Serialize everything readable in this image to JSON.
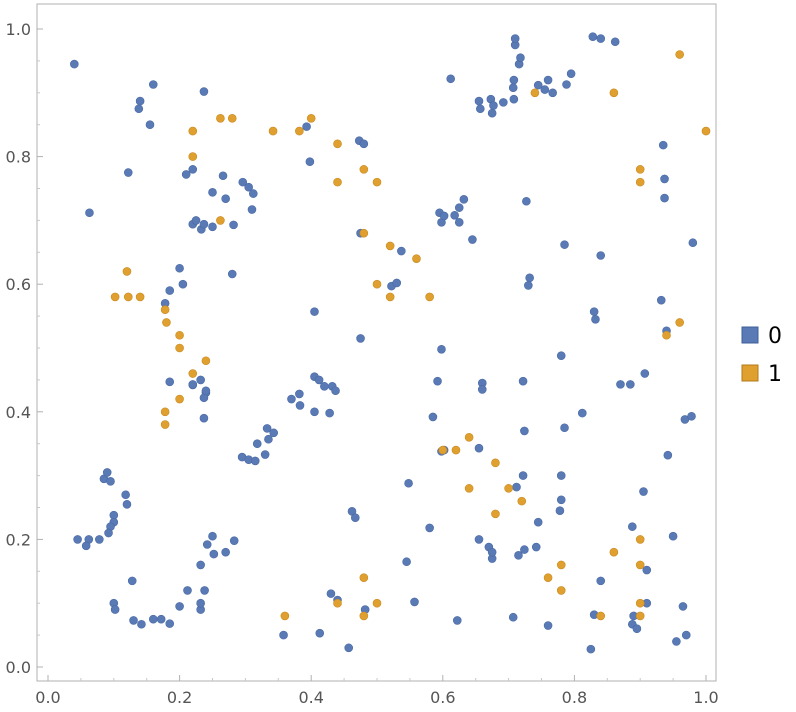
{
  "chart_data": {
    "type": "scatter",
    "title": "",
    "xlabel": "",
    "ylabel": "",
    "xlim": [
      -0.02,
      1.02
    ],
    "ylim": [
      -0.02,
      1.02
    ],
    "xticks": [
      "0.0",
      "0.2",
      "0.4",
      "0.6",
      "0.8",
      "1.0"
    ],
    "yticks": [
      "0.0",
      "0.2",
      "0.4",
      "0.6",
      "0.8",
      "1.0"
    ],
    "grid": false,
    "legend_position": "right",
    "series": [
      {
        "name": "0",
        "color": "#5a7ab5",
        "points": [
          [
            0.04,
            0.945
          ],
          [
            0.063,
            0.712
          ],
          [
            0.122,
            0.775
          ],
          [
            0.138,
            0.875
          ],
          [
            0.14,
            0.887
          ],
          [
            0.155,
            0.85
          ],
          [
            0.16,
            0.913
          ],
          [
            0.237,
            0.902
          ],
          [
            0.21,
            0.772
          ],
          [
            0.22,
            0.78
          ],
          [
            0.25,
            0.744
          ],
          [
            0.266,
            0.77
          ],
          [
            0.27,
            0.734
          ],
          [
            0.296,
            0.76
          ],
          [
            0.305,
            0.752
          ],
          [
            0.312,
            0.742
          ],
          [
            0.31,
            0.717
          ],
          [
            0.22,
            0.694
          ],
          [
            0.225,
            0.7
          ],
          [
            0.233,
            0.686
          ],
          [
            0.237,
            0.694
          ],
          [
            0.25,
            0.69
          ],
          [
            0.282,
            0.693
          ],
          [
            0.28,
            0.616
          ],
          [
            0.2,
            0.625
          ],
          [
            0.205,
            0.6
          ],
          [
            0.185,
            0.59
          ],
          [
            0.178,
            0.57
          ],
          [
            0.185,
            0.447
          ],
          [
            0.22,
            0.442
          ],
          [
            0.232,
            0.45
          ],
          [
            0.24,
            0.43
          ],
          [
            0.237,
            0.422
          ],
          [
            0.333,
            0.374
          ],
          [
            0.343,
            0.367
          ],
          [
            0.335,
            0.357
          ],
          [
            0.318,
            0.35
          ],
          [
            0.33,
            0.333
          ],
          [
            0.295,
            0.329
          ],
          [
            0.305,
            0.325
          ],
          [
            0.315,
            0.323
          ],
          [
            0.37,
            0.42
          ],
          [
            0.382,
            0.428
          ],
          [
            0.383,
            0.41
          ],
          [
            0.393,
            0.847
          ],
          [
            0.398,
            0.792
          ],
          [
            0.405,
            0.557
          ],
          [
            0.405,
            0.455
          ],
          [
            0.412,
            0.45
          ],
          [
            0.42,
            0.44
          ],
          [
            0.432,
            0.44
          ],
          [
            0.437,
            0.433
          ],
          [
            0.405,
            0.4
          ],
          [
            0.428,
            0.398
          ],
          [
            0.473,
            0.825
          ],
          [
            0.48,
            0.82
          ],
          [
            0.475,
            0.68
          ],
          [
            0.475,
            0.515
          ],
          [
            0.522,
            0.597
          ],
          [
            0.53,
            0.602
          ],
          [
            0.537,
            0.652
          ],
          [
            0.462,
            0.244
          ],
          [
            0.467,
            0.234
          ],
          [
            0.43,
            0.115
          ],
          [
            0.44,
            0.105
          ],
          [
            0.457,
            0.03
          ],
          [
            0.413,
            0.053
          ],
          [
            0.358,
            0.05
          ],
          [
            0.482,
            0.09
          ],
          [
            0.545,
            0.165
          ],
          [
            0.548,
            0.288
          ],
          [
            0.557,
            0.102
          ],
          [
            0.58,
            0.218
          ],
          [
            0.585,
            0.392
          ],
          [
            0.592,
            0.448
          ],
          [
            0.595,
            0.712
          ],
          [
            0.598,
            0.697
          ],
          [
            0.602,
            0.707
          ],
          [
            0.598,
            0.338
          ],
          [
            0.602,
            0.34
          ],
          [
            0.598,
            0.498
          ],
          [
            0.612,
            0.922
          ],
          [
            0.618,
            0.708
          ],
          [
            0.625,
            0.72
          ],
          [
            0.625,
            0.697
          ],
          [
            0.632,
            0.733
          ],
          [
            0.622,
            0.073
          ],
          [
            0.655,
            0.887
          ],
          [
            0.657,
            0.875
          ],
          [
            0.66,
            0.445
          ],
          [
            0.66,
            0.435
          ],
          [
            0.655,
            0.343
          ],
          [
            0.655,
            0.2
          ],
          [
            0.67,
            0.188
          ],
          [
            0.675,
            0.17
          ],
          [
            0.673,
            0.89
          ],
          [
            0.677,
            0.88
          ],
          [
            0.675,
            0.868
          ],
          [
            0.692,
            0.885
          ],
          [
            0.708,
            0.89
          ],
          [
            0.707,
            0.908
          ],
          [
            0.708,
            0.92
          ],
          [
            0.71,
            0.975
          ],
          [
            0.71,
            0.985
          ],
          [
            0.716,
            0.945
          ],
          [
            0.718,
            0.955
          ],
          [
            0.712,
            0.282
          ],
          [
            0.707,
            0.078
          ],
          [
            0.715,
            0.175
          ],
          [
            0.722,
            0.448
          ],
          [
            0.724,
            0.37
          ],
          [
            0.722,
            0.3
          ],
          [
            0.724,
            0.184
          ],
          [
            0.727,
            0.73
          ],
          [
            0.73,
            0.598
          ],
          [
            0.732,
            0.61
          ],
          [
            0.745,
            0.912
          ],
          [
            0.742,
            0.188
          ],
          [
            0.745,
            0.227
          ],
          [
            0.755,
            0.905
          ],
          [
            0.76,
            0.92
          ],
          [
            0.767,
            0.9
          ],
          [
            0.76,
            0.065
          ],
          [
            0.78,
            0.262
          ],
          [
            0.778,
            0.245
          ],
          [
            0.78,
            0.3
          ],
          [
            0.785,
            0.662
          ],
          [
            0.78,
            0.488
          ],
          [
            0.785,
            0.375
          ],
          [
            0.795,
            0.93
          ],
          [
            0.788,
            0.913
          ],
          [
            0.812,
            0.398
          ],
          [
            0.828,
            0.988
          ],
          [
            0.832,
            0.545
          ],
          [
            0.83,
            0.557
          ],
          [
            0.84,
            0.645
          ],
          [
            0.84,
            0.985
          ],
          [
            0.83,
            0.082
          ],
          [
            0.825,
            0.028
          ],
          [
            0.84,
            0.135
          ],
          [
            0.862,
            0.98
          ],
          [
            0.87,
            0.443
          ],
          [
            0.885,
            0.443
          ],
          [
            0.888,
            0.22
          ],
          [
            0.89,
            0.08
          ],
          [
            0.888,
            0.067
          ],
          [
            0.895,
            0.06
          ],
          [
            0.905,
            0.275
          ],
          [
            0.907,
            0.46
          ],
          [
            0.91,
            0.152
          ],
          [
            0.91,
            0.1
          ],
          [
            0.932,
            0.575
          ],
          [
            0.935,
            0.818
          ],
          [
            0.937,
            0.765
          ],
          [
            0.937,
            0.735
          ],
          [
            0.94,
            0.527
          ],
          [
            0.942,
            0.332
          ],
          [
            0.95,
            0.205
          ],
          [
            0.955,
            0.04
          ],
          [
            0.965,
            0.095
          ],
          [
            0.968,
            0.388
          ],
          [
            0.978,
            0.393
          ],
          [
            0.98,
            0.665
          ],
          [
            0.97,
            0.05
          ],
          [
            0.085,
            0.295
          ],
          [
            0.09,
            0.305
          ],
          [
            0.095,
            0.291
          ],
          [
            0.118,
            0.27
          ],
          [
            0.12,
            0.255
          ],
          [
            0.1,
            0.238
          ],
          [
            0.1,
            0.227
          ],
          [
            0.095,
            0.22
          ],
          [
            0.092,
            0.21
          ],
          [
            0.078,
            0.2
          ],
          [
            0.062,
            0.2
          ],
          [
            0.058,
            0.19
          ],
          [
            0.045,
            0.2
          ],
          [
            0.1,
            0.1
          ],
          [
            0.102,
            0.09
          ],
          [
            0.128,
            0.135
          ],
          [
            0.13,
            0.073
          ],
          [
            0.142,
            0.067
          ],
          [
            0.16,
            0.075
          ],
          [
            0.172,
            0.075
          ],
          [
            0.185,
            0.068
          ],
          [
            0.2,
            0.095
          ],
          [
            0.212,
            0.12
          ],
          [
            0.232,
            0.09
          ],
          [
            0.232,
            0.1
          ],
          [
            0.238,
            0.12
          ],
          [
            0.232,
            0.16
          ],
          [
            0.242,
            0.192
          ],
          [
            0.25,
            0.205
          ],
          [
            0.252,
            0.177
          ],
          [
            0.27,
            0.18
          ],
          [
            0.283,
            0.198
          ],
          [
            0.237,
            0.39
          ],
          [
            0.24,
            0.433
          ],
          [
            0.22,
            0.443
          ],
          [
            0.645,
            0.67
          ],
          [
            0.675,
            0.18
          ]
        ]
      },
      {
        "name": "1",
        "color": "#e0a030",
        "points": [
          [
            0.102,
            0.58
          ],
          [
            0.12,
            0.62
          ],
          [
            0.122,
            0.58
          ],
          [
            0.14,
            0.58
          ],
          [
            0.178,
            0.56
          ],
          [
            0.18,
            0.54
          ],
          [
            0.2,
            0.52
          ],
          [
            0.2,
            0.5
          ],
          [
            0.22,
            0.46
          ],
          [
            0.24,
            0.48
          ],
          [
            0.2,
            0.42
          ],
          [
            0.178,
            0.4
          ],
          [
            0.178,
            0.38
          ],
          [
            0.22,
            0.84
          ],
          [
            0.22,
            0.8
          ],
          [
            0.262,
            0.86
          ],
          [
            0.28,
            0.86
          ],
          [
            0.262,
            0.7
          ],
          [
            0.342,
            0.84
          ],
          [
            0.382,
            0.84
          ],
          [
            0.4,
            0.86
          ],
          [
            0.44,
            0.82
          ],
          [
            0.44,
            0.76
          ],
          [
            0.48,
            0.78
          ],
          [
            0.5,
            0.76
          ],
          [
            0.48,
            0.68
          ],
          [
            0.5,
            0.6
          ],
          [
            0.52,
            0.66
          ],
          [
            0.52,
            0.58
          ],
          [
            0.56,
            0.64
          ],
          [
            0.58,
            0.58
          ],
          [
            0.6,
            0.34
          ],
          [
            0.62,
            0.34
          ],
          [
            0.64,
            0.36
          ],
          [
            0.64,
            0.28
          ],
          [
            0.68,
            0.32
          ],
          [
            0.68,
            0.24
          ],
          [
            0.7,
            0.28
          ],
          [
            0.72,
            0.26
          ],
          [
            0.74,
            0.9
          ],
          [
            0.76,
            0.14
          ],
          [
            0.78,
            0.16
          ],
          [
            0.78,
            0.12
          ],
          [
            0.86,
            0.9
          ],
          [
            0.86,
            0.18
          ],
          [
            0.84,
            0.08
          ],
          [
            0.9,
            0.78
          ],
          [
            0.9,
            0.76
          ],
          [
            0.9,
            0.2
          ],
          [
            0.9,
            0.16
          ],
          [
            0.9,
            0.1
          ],
          [
            0.9,
            0.08
          ],
          [
            0.94,
            0.52
          ],
          [
            0.96,
            0.54
          ],
          [
            0.96,
            0.96
          ],
          [
            1.0,
            0.84
          ],
          [
            0.36,
            0.08
          ],
          [
            0.44,
            0.1
          ],
          [
            0.48,
            0.14
          ],
          [
            0.48,
            0.08
          ],
          [
            0.5,
            0.1
          ]
        ]
      }
    ]
  }
}
